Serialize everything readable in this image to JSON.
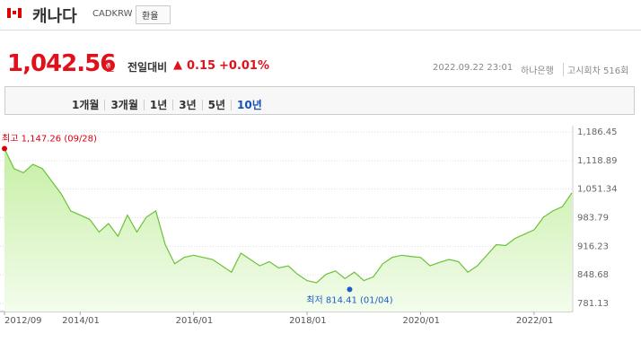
{
  "header": {
    "country": "캐나다",
    "code": "CADKRW",
    "button": "환율"
  },
  "quote": {
    "price": "1,042.56",
    "unit": "원",
    "change_label": "전일대비",
    "change": "0.15",
    "change_pct": "+0.01%",
    "time": "2022.09.22 23:01",
    "bank": "하나은행",
    "round": "고시회차 516회"
  },
  "tabs": [
    "1개월",
    "3개월",
    "1년",
    "3년",
    "5년",
    "10년"
  ],
  "active_tab": 5,
  "chart_data": {
    "type": "line",
    "categories": [
      "2012/09",
      null,
      null,
      null,
      null,
      null,
      null,
      null,
      "2014/01",
      null,
      null,
      null,
      null,
      null,
      null,
      null,
      null,
      null,
      null,
      null,
      "2016/01",
      null,
      null,
      null,
      null,
      null,
      null,
      null,
      null,
      null,
      null,
      null,
      "2018/01",
      null,
      null,
      null,
      null,
      null,
      null,
      null,
      null,
      null,
      null,
      null,
      "2020/01",
      null,
      null,
      null,
      null,
      null,
      null,
      null,
      null,
      null,
      null,
      null,
      "2022/01",
      null,
      null,
      null,
      null
    ],
    "series": [
      {
        "color": "#6cc13a",
        "values": [
          1147,
          1100,
          1090,
          1110,
          1100,
          1070,
          1040,
          1000,
          990,
          980,
          950,
          970,
          940,
          990,
          950,
          985,
          1000,
          920,
          875,
          890,
          895,
          890,
          885,
          870,
          855,
          900,
          885,
          870,
          880,
          865,
          870,
          850,
          835,
          830,
          850,
          858,
          840,
          855,
          835,
          844,
          875,
          890,
          895,
          892,
          890,
          870,
          878,
          885,
          880,
          855,
          870,
          895,
          920,
          918,
          935,
          945,
          955,
          985,
          1000,
          1010,
          1042.56
        ]
      }
    ],
    "ylim": [
      781.13,
      1186.45
    ],
    "yticks": [
      {
        "value": 781.13,
        "label": "781.13"
      },
      {
        "value": 848.68,
        "label": "848.68"
      },
      {
        "value": 916.23,
        "label": "916.23"
      },
      {
        "value": 983.79,
        "label": "983.79"
      },
      {
        "value": 1051.34,
        "label": "1,051.34"
      },
      {
        "value": 1118.89,
        "label": "1,118.89"
      },
      {
        "value": 1186.45,
        "label": "1,186.45"
      }
    ],
    "grid": true,
    "max": {
      "label": "최고",
      "value": 1147.26,
      "value_label": "1,147.26",
      "date": "(09/28)",
      "color": "#d9000d"
    },
    "min": {
      "label": "최저",
      "value": 814.41,
      "value_label": "814.41",
      "date": "(01/04)",
      "color": "#1a5fc8"
    }
  }
}
